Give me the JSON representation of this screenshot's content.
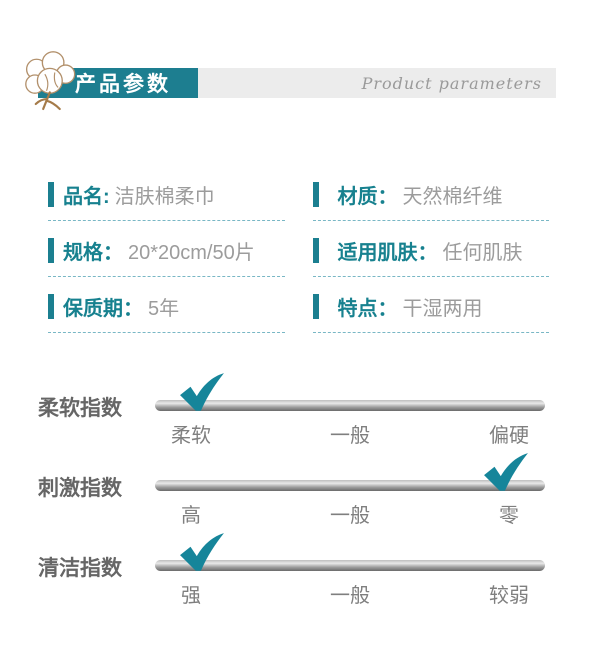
{
  "header": {
    "title": "产品参数",
    "subtitle": "Product parameters"
  },
  "specs": [
    {
      "label": "品名:",
      "value": "洁肤棉柔巾"
    },
    {
      "label": "材质：",
      "value": "天然棉纤维"
    },
    {
      "label": "规格：",
      "value": "20*20cm/50片"
    },
    {
      "label": "适用肌肤：",
      "value": "任何肌肤"
    },
    {
      "label": "保质期：",
      "value": "5年"
    },
    {
      "label": "特点：",
      "value": "干湿两用"
    }
  ],
  "indexes": [
    {
      "name": "柔软指数",
      "options": [
        "柔软",
        "一般",
        "偏硬"
      ],
      "checked": "柔软",
      "checked_index": 0
    },
    {
      "name": "刺激指数",
      "options": [
        "高",
        "一般",
        "零"
      ],
      "checked": "零",
      "checked_index": 2
    },
    {
      "name": "清洁指数",
      "options": [
        "强",
        "一般",
        "较弱"
      ],
      "checked": "强",
      "checked_index": 0
    }
  ],
  "icons": {
    "cotton_flower": "cotton-flower-icon",
    "check": "check-icon"
  },
  "colors": {
    "banner_teal": "#1d7e90",
    "label_teal": "#17818f",
    "check_teal": "#16859a",
    "value_gray": "#9c9c9c",
    "dash_teal": "#79b7c5",
    "strip_gray": "#ececec",
    "flower_tan": "#b2906b"
  }
}
